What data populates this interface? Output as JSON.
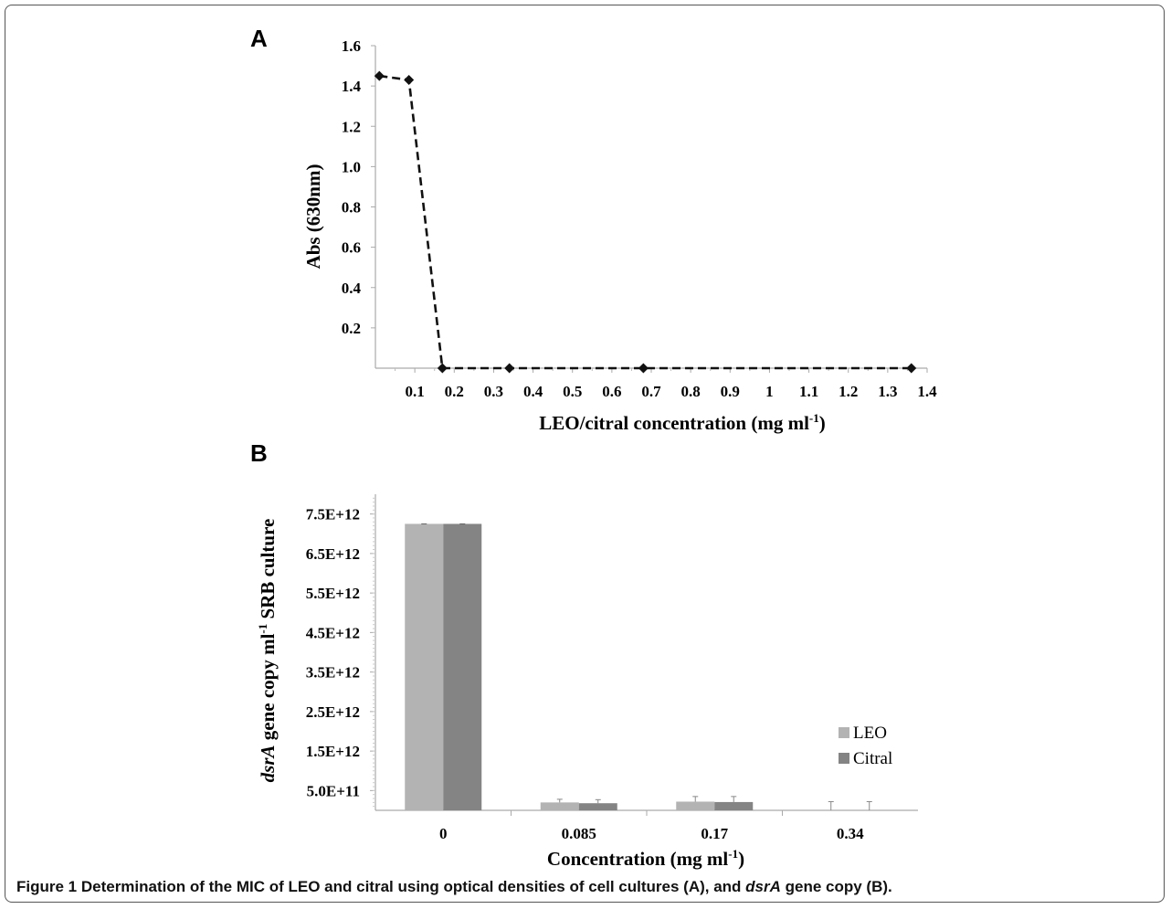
{
  "chart_data": [
    {
      "panel": "A",
      "type": "line",
      "ylabel": "Abs (630nm)",
      "xlabel": "LEO/citral concentration (mg ml",
      "xlabel_sup": "-1",
      "xlabel_end": ")",
      "x": [
        0.01,
        0.085,
        0.17,
        0.34,
        0.68,
        1.36
      ],
      "y": [
        1.45,
        1.43,
        0.0,
        0.0,
        0.0,
        0.0
      ],
      "xlim": [
        0,
        1.4
      ],
      "ylim": [
        0,
        1.6
      ],
      "x_ticks": [
        0.1,
        0.2,
        0.3,
        0.4,
        0.5,
        0.6,
        0.7,
        0.8,
        0.9,
        1,
        1.1,
        1.2,
        1.3,
        1.4
      ],
      "x_tick_labels": [
        "0.1",
        "0.2",
        "0.3",
        "0.4",
        "0.5",
        "0.6",
        "0.7",
        "0.8",
        "0.9",
        "1",
        "1.1",
        "1.2",
        "1.3",
        "1.4"
      ],
      "y_ticks": [
        0.2,
        0.4,
        0.6,
        0.8,
        1.0,
        1.2,
        1.4,
        1.6
      ],
      "y_tick_labels": [
        "0.2",
        "0.4",
        "0.6",
        "0.8",
        "1.0",
        "1.2",
        "1.4",
        "1.6"
      ],
      "line_style": "dashed",
      "marker": "diamond",
      "color": "#111111",
      "grid": false
    },
    {
      "panel": "B",
      "type": "bar",
      "ylabel_italic": "dsrA",
      "ylabel_mid": " gene copy ml",
      "ylabel_sup": "-1",
      "ylabel_end": " SRB culture",
      "xlabel": "Concentration (mg ml",
      "xlabel_sup": "-1",
      "xlabel_end": ")",
      "categories": [
        "0",
        "0.085",
        "0.17",
        "0.34"
      ],
      "series": [
        {
          "name": "LEO",
          "values": [
            7250000000000.0,
            200000000000.0,
            220000000000.0,
            0
          ],
          "errors": [
            0,
            80000000000.0,
            130000000000.0,
            220000000000.0
          ],
          "color": "#b3b3b3"
        },
        {
          "name": "Citral",
          "values": [
            7250000000000.0,
            180000000000.0,
            210000000000.0,
            0
          ],
          "errors": [
            0,
            90000000000.0,
            140000000000.0,
            220000000000.0
          ],
          "color": "#848484"
        }
      ],
      "ylim": [
        0,
        8000000000000.0
      ],
      "y_ticks": [
        500000000000.0,
        1500000000000.0,
        2500000000000.0,
        3500000000000.0,
        4500000000000.0,
        5500000000000.0,
        6500000000000.0,
        7500000000000.0
      ],
      "y_tick_labels": [
        "5.0E+11",
        "1.5E+12",
        "2.5E+12",
        "3.5E+12",
        "4.5E+12",
        "5.5E+12",
        "6.5E+12",
        "7.5E+12"
      ],
      "legend_position": "right",
      "grid": false
    }
  ],
  "panel_labels": {
    "a": "A",
    "b": "B"
  },
  "caption": {
    "label": "Figure 1",
    "text_1": " Determination of the MIC of LEO and citral using optical densities of cell cultures (A), and ",
    "italic": "dsrA",
    "text_2": " gene copy (B)."
  }
}
